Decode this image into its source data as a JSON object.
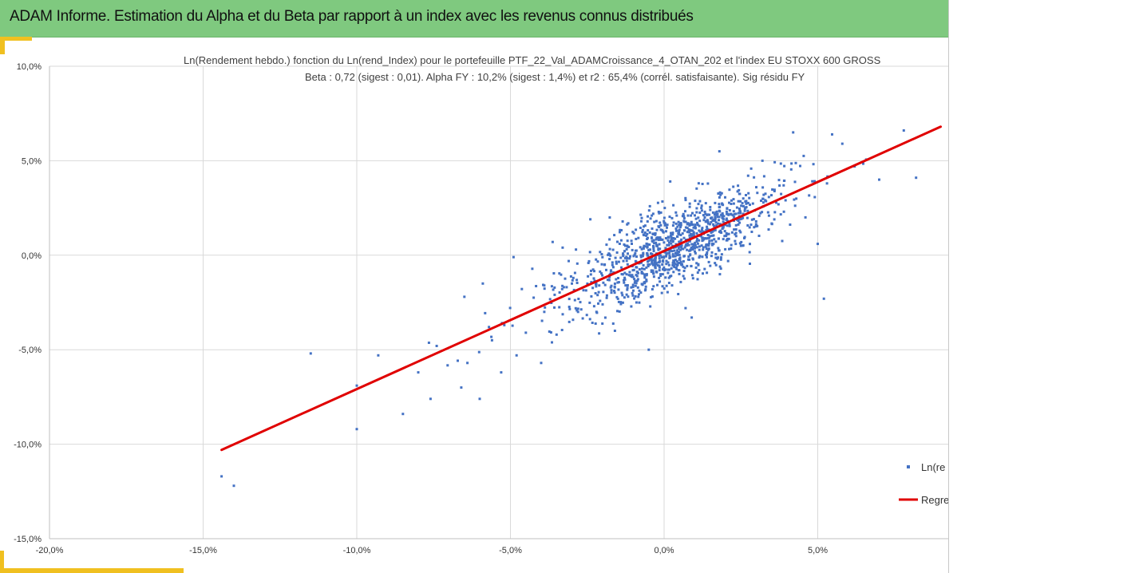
{
  "header": {
    "title": "ADAM Informe. Estimation du Alpha et du Beta par rapport à un index avec les revenus connus distribués"
  },
  "colors": {
    "header_bg": "#7fc97f",
    "accent_yellow": "#f0c020",
    "points": "#4472c4",
    "regression": "#e00000",
    "grid": "#d9d9d9"
  },
  "chart_data": {
    "type": "scatter",
    "title": "Ln(Rendement hebdo.) fonction du Ln(rend_Index) pour le portefeuille PTF_22_Val_ADAMCroissance_4_OTAN_202 et l'index EU STOXX 600 GROSS",
    "subtitle": "Beta : 0,72 (sigest : 0,01).  Alpha FY : 10,2% (sigest : 1,4%) et r2 : 65,4% (corrél. satisfaisante). Sig résidu FY",
    "x_ticks": [
      "-20,0%",
      "-15,0%",
      "-10,0%",
      "-5,0%",
      "0,0%",
      "5,0%"
    ],
    "x_tick_values": [
      -20,
      -15,
      -10,
      -5,
      0,
      5
    ],
    "y_ticks": [
      "10,0%",
      "5,0%",
      "0,0%",
      "-5,0%",
      "-10,0%",
      "-15,0%"
    ],
    "y_tick_values": [
      10,
      5,
      0,
      -5,
      -10,
      -15
    ],
    "xlim": [
      -20,
      9
    ],
    "ylim": [
      -15,
      10
    ],
    "grid": true,
    "legend_position": "right",
    "series": [
      {
        "name": "Ln(re",
        "kind": "scatter",
        "color": "#4472c4",
        "point_count": 1200,
        "x": [
          -14.4,
          -14.0,
          -11.5,
          -10.0,
          -10.0,
          -9.3,
          -8.5,
          -8.0,
          -7.6,
          -7.4,
          -6.6,
          -6.5,
          -6.4,
          -6.0,
          -5.9,
          -5.7,
          -5.6,
          -5.3,
          -5.2,
          -4.9,
          -4.8,
          -4.5,
          -4.0,
          -3.9,
          -3.9,
          -3.5,
          -3.3,
          -3.0,
          -2.8,
          -2.4,
          -2.2,
          -2.0,
          -1.8,
          -1.6,
          -1.2,
          -0.9,
          -0.5,
          -0.4,
          0.2,
          0.7,
          0.9,
          1.0,
          1.5,
          1.8,
          2.5,
          3.0,
          3.2,
          3.9,
          4.2,
          4.6,
          5.0,
          5.2,
          5.3,
          5.8,
          6.2,
          7.0,
          7.8,
          8.2
        ],
        "y": [
          -11.7,
          -12.2,
          -5.2,
          -6.9,
          -9.2,
          -5.3,
          -8.4,
          -6.2,
          -7.6,
          -4.8,
          -7.0,
          -2.2,
          -5.7,
          -7.6,
          -1.5,
          -3.8,
          -4.5,
          -6.2,
          -3.7,
          -0.1,
          -5.3,
          -4.1,
          -5.7,
          -1.6,
          -3.0,
          -4.2,
          0.4,
          -1.5,
          -3.0,
          1.9,
          -3.0,
          -2.6,
          -1.3,
          -4.0,
          0.5,
          -2.5,
          -5.0,
          2.1,
          3.9,
          -2.8,
          -3.3,
          0.2,
          2.4,
          5.5,
          0.5,
          3.6,
          5.0,
          2.3,
          6.5,
          2.0,
          0.6,
          -2.3,
          3.8,
          5.9,
          4.7,
          4.0,
          6.6,
          4.1
        ]
      },
      {
        "name": "Regre",
        "kind": "line",
        "color": "#e00000",
        "x": [
          -14.4,
          9.0
        ],
        "y": [
          -10.3,
          6.8
        ]
      }
    ]
  }
}
